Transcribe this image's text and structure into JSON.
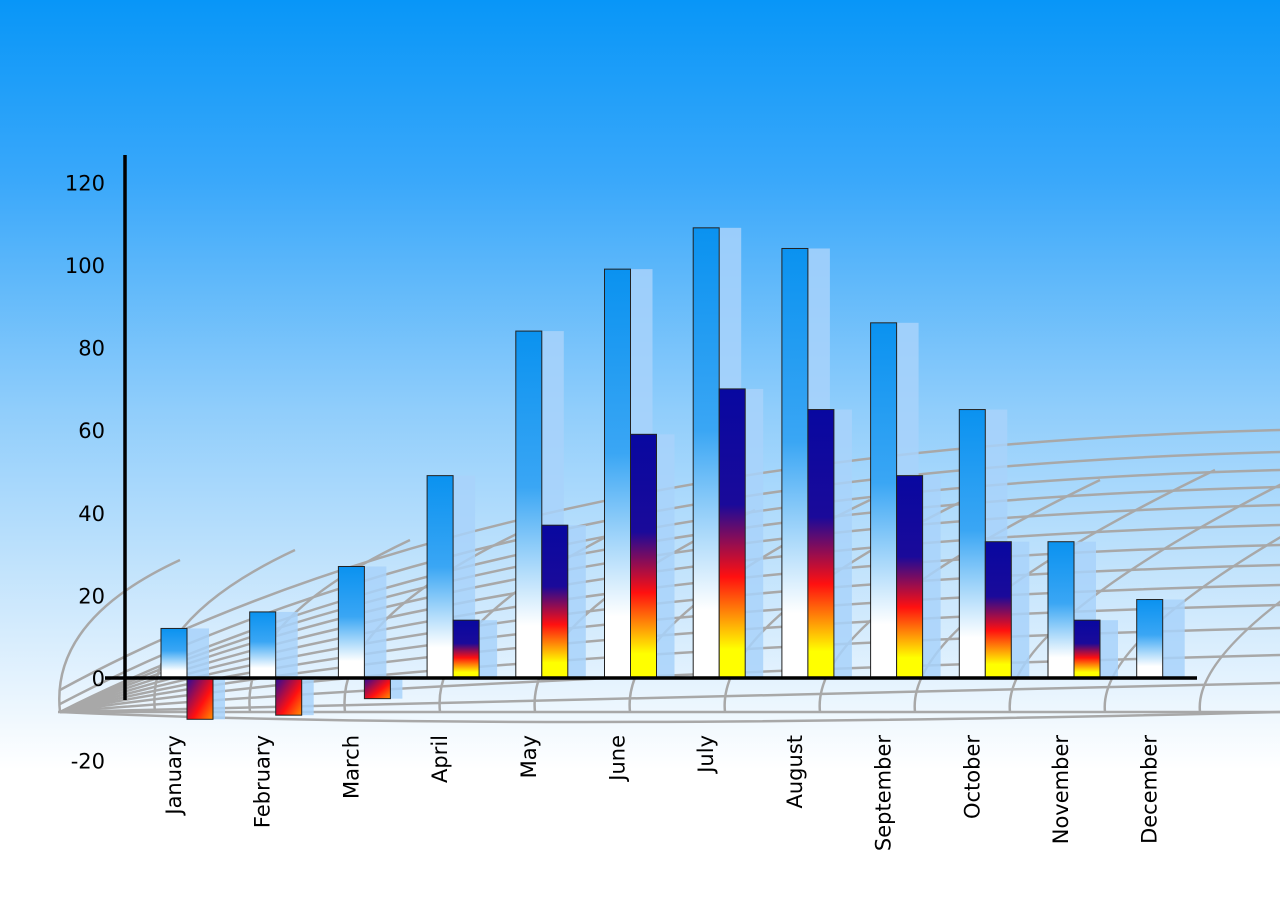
{
  "chart_data": {
    "type": "bar",
    "title": "",
    "xlabel": "",
    "ylabel": "",
    "ylim": [
      -20,
      120
    ],
    "yticks": [
      120,
      100,
      80,
      60,
      40,
      20,
      0,
      -20
    ],
    "grid": false,
    "categories": [
      "January",
      "February",
      "March",
      "April",
      "May",
      "June",
      "July",
      "August",
      "September",
      "October",
      "November",
      "December"
    ],
    "series": [
      {
        "values": [
          12,
          16,
          27,
          49,
          84,
          99,
          109,
          104,
          86,
          65,
          33,
          19
        ],
        "color": "#1a9af0"
      },
      {
        "values": [
          -10,
          -9,
          -5,
          14,
          37,
          59,
          70,
          65,
          49,
          33,
          14,
          null
        ],
        "color": "#0a0aa0"
      }
    ]
  }
}
